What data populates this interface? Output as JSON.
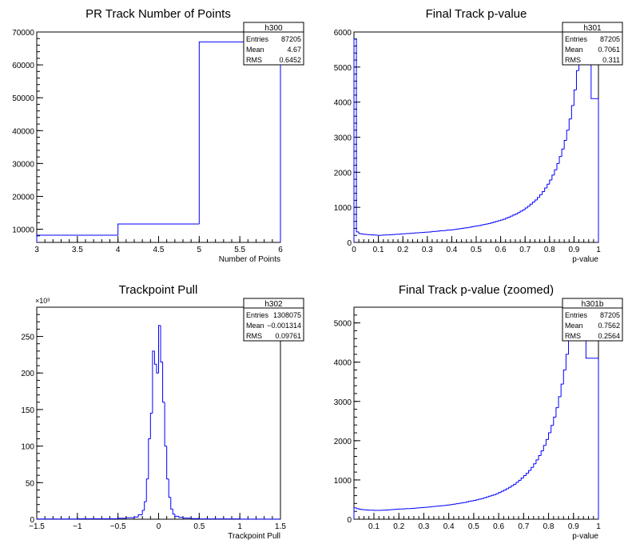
{
  "colors": {
    "line": "#0000ff",
    "frame": "#000000",
    "background": "#ffffff"
  },
  "chart_data": [
    {
      "type": "histogram",
      "name": "h300",
      "title": "PR Track Number of Points",
      "xlabel": "Number of Points",
      "ylabel": "",
      "xlim": [
        3,
        6
      ],
      "ylim": [
        6000,
        70000
      ],
      "xticks": [
        "3",
        "3.5",
        "4",
        "4.5",
        "5",
        "5.5",
        "6"
      ],
      "xtick_values": [
        3,
        3.5,
        4,
        4.5,
        5,
        5.5,
        6
      ],
      "yticks": [
        "10000",
        "20000",
        "30000",
        "40000",
        "50000",
        "60000",
        "70000"
      ],
      "ytick_values": [
        10000,
        20000,
        30000,
        40000,
        50000,
        60000,
        70000
      ],
      "exponent_label": "",
      "stats": {
        "header": "h300",
        "rows": [
          [
            "Entries",
            "87205"
          ],
          [
            "Mean",
            "4.67"
          ],
          [
            "RMS",
            "0.6452"
          ]
        ]
      },
      "bins": {
        "edges": [
          3,
          4,
          5,
          6
        ],
        "values": [
          8200,
          11600,
          67000
        ]
      },
      "grid": false
    },
    {
      "type": "histogram",
      "name": "h301",
      "title": "Final Track p-value",
      "xlabel": "p-value",
      "ylabel": "",
      "xlim": [
        0,
        1
      ],
      "ylim": [
        0,
        6000
      ],
      "xticks": [
        "0",
        "0.1",
        "0.2",
        "0.3",
        "0.4",
        "0.5",
        "0.6",
        "0.7",
        "0.8",
        "0.9",
        "1"
      ],
      "xtick_values": [
        0,
        0.1,
        0.2,
        0.3,
        0.4,
        0.5,
        0.6,
        0.7,
        0.8,
        0.9,
        1
      ],
      "yticks": [
        "0",
        "1000",
        "2000",
        "3000",
        "4000",
        "5000",
        "6000"
      ],
      "ytick_values": [
        0,
        1000,
        2000,
        3000,
        4000,
        5000,
        6000
      ],
      "exponent_label": "",
      "stats": {
        "header": "h301",
        "rows": [
          [
            "Entries",
            "87205"
          ],
          [
            "Mean",
            "0.7061"
          ],
          [
            "RMS",
            "0.311"
          ]
        ]
      },
      "bins": {
        "lo": 0,
        "hi": 1,
        "values": [
          5800,
          300,
          250,
          240,
          230,
          225,
          220,
          215,
          210,
          205,
          200,
          205,
          210,
          215,
          215,
          220,
          225,
          230,
          235,
          240,
          245,
          250,
          255,
          260,
          265,
          270,
          275,
          280,
          285,
          290,
          295,
          300,
          310,
          315,
          320,
          330,
          335,
          340,
          350,
          355,
          360,
          370,
          380,
          390,
          400,
          410,
          420,
          430,
          445,
          460,
          470,
          480,
          495,
          510,
          525,
          540,
          560,
          580,
          600,
          620,
          640,
          660,
          690,
          720,
          750,
          780,
          810,
          850,
          890,
          930,
          980,
          1030,
          1090,
          1150,
          1210,
          1280,
          1360,
          1450,
          1550,
          1660,
          1780,
          1920,
          2070,
          2250,
          2450,
          2660,
          2910,
          3200,
          3520,
          3900,
          4350,
          4900,
          5500,
          6000,
          6000,
          6000,
          5700,
          4100,
          4100,
          4100
        ]
      },
      "grid": false
    },
    {
      "type": "histogram",
      "name": "h302",
      "title": "Trackpoint Pull",
      "xlabel": "Trackpoint Pull",
      "ylabel": "",
      "xlim": [
        -1.5,
        1.5
      ],
      "ylim": [
        0,
        290
      ],
      "xticks": [
        "−1.5",
        "−1",
        "−0.5",
        "0",
        "0.5",
        "1",
        "1.5"
      ],
      "xtick_values": [
        -1.5,
        -1,
        -0.5,
        0,
        0.5,
        1,
        1.5
      ],
      "yticks": [
        "0",
        "50",
        "100",
        "150",
        "200",
        "250"
      ],
      "ytick_values": [
        0,
        50,
        100,
        150,
        200,
        250
      ],
      "exponent_label": "×10³",
      "stats": {
        "header": "h302",
        "rows": [
          [
            "Entries",
            "1308075"
          ],
          [
            "Mean",
            "−0.001314"
          ],
          [
            "RMS",
            "0.09761"
          ]
        ]
      },
      "bins": {
        "edges": [
          -1.5,
          -1.0,
          -0.5,
          -0.4,
          -0.3,
          -0.25,
          -0.2,
          -0.175,
          -0.15,
          -0.125,
          -0.1,
          -0.075,
          -0.05,
          -0.025,
          0,
          0.025,
          0.05,
          0.075,
          0.1,
          0.125,
          0.15,
          0.175,
          0.2,
          0.25,
          0.3,
          0.4,
          0.5,
          1.0,
          1.5
        ],
        "values": [
          0.3,
          0.6,
          1.2,
          2,
          3,
          6,
          12,
          24,
          55,
          110,
          145,
          230,
          212,
          200,
          265,
          215,
          160,
          100,
          55,
          30,
          14,
          7,
          4,
          2.5,
          1.5,
          0.8,
          0.4,
          0.2
        ]
      },
      "grid": false
    },
    {
      "type": "histogram",
      "name": "h301b",
      "title": "Final Track p-value (zoomed)",
      "xlabel": "p-value",
      "ylabel": "",
      "xlim": [
        0.02,
        1
      ],
      "ylim": [
        0,
        5400
      ],
      "xticks": [
        "0.1",
        "0.2",
        "0.3",
        "0.4",
        "0.5",
        "0.6",
        "0.7",
        "0.8",
        "0.9",
        "1"
      ],
      "xtick_values": [
        0.1,
        0.2,
        0.3,
        0.4,
        0.5,
        0.6,
        0.7,
        0.8,
        0.9,
        1
      ],
      "yticks": [
        "0",
        "1000",
        "2000",
        "3000",
        "4000",
        "5000"
      ],
      "ytick_values": [
        0,
        1000,
        2000,
        3000,
        4000,
        5000
      ],
      "exponent_label": "",
      "stats": {
        "header": "h301b",
        "rows": [
          [
            "Entries",
            "87205"
          ],
          [
            "Mean",
            "0.7562"
          ],
          [
            "RMS",
            "0.2564"
          ]
        ]
      },
      "bins": {
        "lo": 0.02,
        "hi": 1,
        "values": [
          290,
          270,
          255,
          245,
          240,
          235,
          230,
          230,
          225,
          225,
          225,
          230,
          230,
          235,
          240,
          245,
          250,
          255,
          260,
          260,
          265,
          270,
          270,
          275,
          280,
          285,
          290,
          295,
          300,
          305,
          310,
          320,
          325,
          330,
          340,
          345,
          350,
          360,
          365,
          375,
          385,
          395,
          405,
          415,
          425,
          440,
          455,
          465,
          480,
          495,
          510,
          525,
          545,
          565,
          585,
          605,
          625,
          650,
          680,
          710,
          740,
          775,
          810,
          850,
          890,
          940,
          990,
          1050,
          1110,
          1170,
          1240,
          1320,
          1410,
          1510,
          1620,
          1740,
          1880,
          2030,
          2200,
          2390,
          2600,
          2840,
          3120,
          3440,
          3800,
          4200,
          4700,
          5400,
          5400,
          5400,
          5400,
          5400,
          5400,
          4100,
          4100,
          4100,
          4100,
          4100
        ]
      },
      "grid": false
    }
  ]
}
